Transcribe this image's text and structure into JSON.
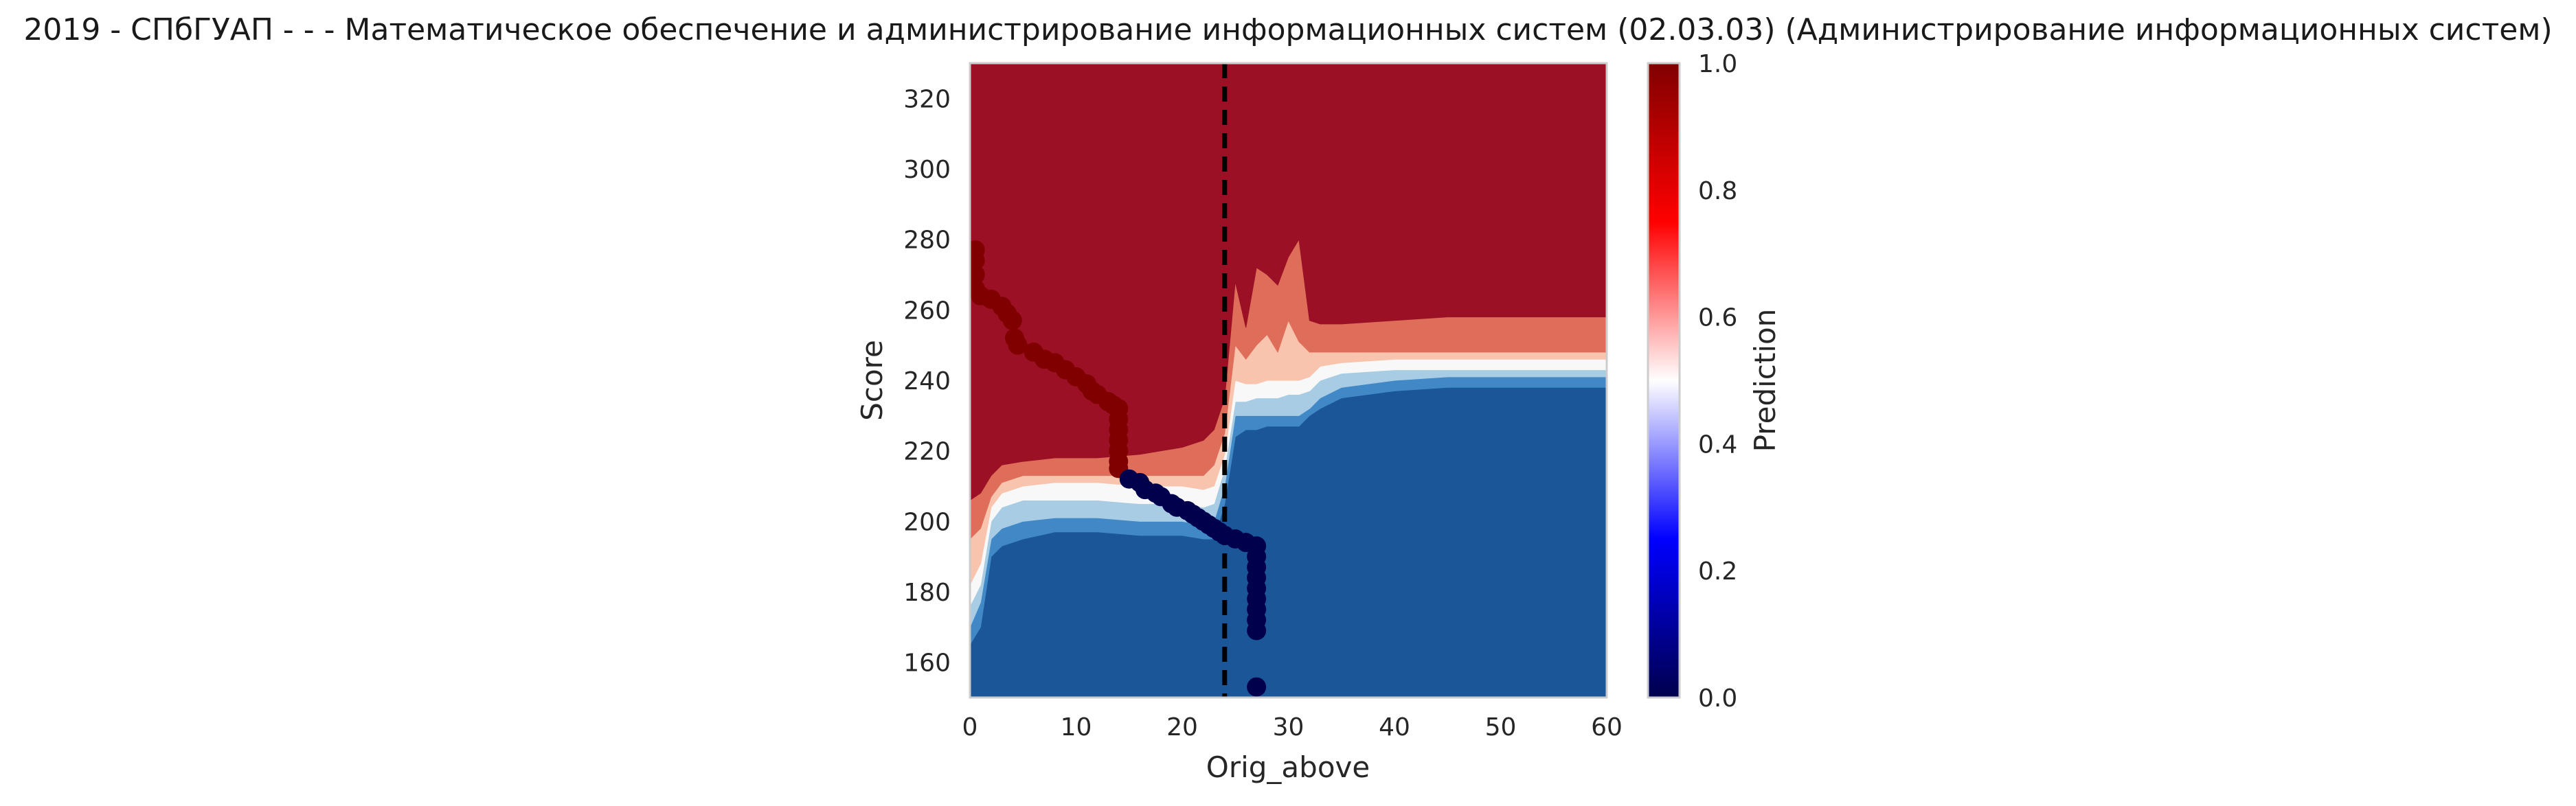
{
  "chart_data": {
    "type": "contour",
    "title": "2019 - СПбГУАП - - - Математическое обеспечение и администрирование информационных систем (02.03.03) (Администрирование информационных систем)",
    "xlabel": "Orig_above",
    "ylabel": "Score",
    "xlim": [
      0,
      60
    ],
    "ylim": [
      150,
      330
    ],
    "xticks": [
      0,
      10,
      20,
      30,
      40,
      50,
      60
    ],
    "yticks": [
      160,
      180,
      200,
      220,
      240,
      260,
      280,
      300,
      320
    ],
    "colorbar": {
      "label": "Prediction",
      "range": [
        0,
        1
      ],
      "ticks": [
        "0.0",
        "0.2",
        "0.4",
        "0.6",
        "0.8",
        "1.0"
      ],
      "cmap": [
        "#00004c",
        "#0000ff",
        "#ffffff",
        "#ff0000",
        "#800000"
      ]
    },
    "vertical_line": {
      "x": 24,
      "style": "dashed",
      "color": "#000000"
    },
    "contour_levels": [
      {
        "min": 0.0,
        "max": 0.2,
        "color": "#1b5699"
      },
      {
        "min": 0.2,
        "max": 0.3,
        "color": "#4189c6"
      },
      {
        "min": 0.3,
        "max": 0.4,
        "color": "#a7cce4"
      },
      {
        "min": 0.4,
        "max": 0.6,
        "color": "#f8f8f8"
      },
      {
        "min": 0.6,
        "max": 0.7,
        "color": "#f8c4ad"
      },
      {
        "min": 0.7,
        "max": 0.8,
        "color": "#de6e5a"
      },
      {
        "min": 0.8,
        "max": 1.0,
        "color": "#9b1024"
      }
    ],
    "boundaries": {
      "x": [
        0,
        1,
        2,
        3,
        5,
        8,
        12,
        16,
        20,
        22,
        23,
        24,
        25,
        26,
        27,
        28,
        29,
        30,
        31,
        32,
        33,
        35,
        40,
        45,
        50,
        55,
        60
      ],
      "b1": [
        165,
        170,
        190,
        193,
        195,
        197,
        197,
        196,
        196,
        195,
        195,
        205,
        224,
        226,
        226,
        227,
        227,
        227,
        227,
        230,
        232,
        235,
        237,
        238,
        238,
        238,
        238
      ],
      "b2": [
        170,
        177,
        195,
        198,
        200,
        201,
        201,
        200,
        200,
        199,
        200,
        210,
        230,
        230,
        230,
        230,
        230,
        230,
        230,
        232,
        235,
        238,
        240,
        241,
        241,
        241,
        241
      ],
      "b3": [
        176,
        182,
        200,
        204,
        206,
        206,
        206,
        205,
        205,
        204,
        205,
        215,
        234,
        234,
        235,
        235,
        235,
        236,
        236,
        237,
        240,
        242,
        243,
        243,
        243,
        243,
        243
      ],
      "b4": [
        182,
        188,
        204,
        208,
        210,
        211,
        211,
        210,
        210,
        209,
        210,
        219,
        240,
        239,
        239,
        240,
        240,
        240,
        240,
        241,
        244,
        245,
        246,
        246,
        246,
        246,
        246
      ],
      "b5": [
        195,
        198,
        207,
        211,
        213,
        213,
        213,
        213,
        213,
        213,
        216,
        225,
        250,
        246,
        250,
        253,
        248,
        257,
        251,
        248,
        248,
        248,
        248,
        248,
        248,
        248,
        248
      ],
      "b6": [
        206,
        208,
        213,
        216,
        217,
        218,
        218,
        219,
        221,
        223,
        226,
        235,
        268,
        255,
        272,
        270,
        267,
        275,
        280,
        257,
        256,
        256,
        257,
        258,
        258,
        258,
        258
      ]
    },
    "series": [
      {
        "name": "prediction=1",
        "color": "#800000",
        "points": [
          [
            0.5,
            277
          ],
          [
            0.5,
            274
          ],
          [
            0.5,
            270
          ],
          [
            0.5,
            266
          ],
          [
            1,
            264
          ],
          [
            2,
            263
          ],
          [
            3,
            261
          ],
          [
            3.5,
            259
          ],
          [
            4,
            257
          ],
          [
            4.2,
            252
          ],
          [
            4.5,
            250
          ],
          [
            6,
            248
          ],
          [
            7,
            246
          ],
          [
            8,
            245
          ],
          [
            9,
            243
          ],
          [
            10,
            241
          ],
          [
            11,
            239
          ],
          [
            11.5,
            237
          ],
          [
            12,
            236
          ],
          [
            13,
            234
          ],
          [
            13.5,
            233
          ],
          [
            14,
            232
          ],
          [
            14,
            229
          ],
          [
            14,
            226
          ],
          [
            14,
            223
          ],
          [
            14,
            220
          ],
          [
            14,
            217
          ],
          [
            14,
            215
          ]
        ]
      },
      {
        "name": "prediction=0",
        "color": "#00004c",
        "points": [
          [
            15,
            212
          ],
          [
            16,
            211
          ],
          [
            16.5,
            209
          ],
          [
            17.5,
            208
          ],
          [
            18,
            207
          ],
          [
            19,
            205
          ],
          [
            19.5,
            204
          ],
          [
            20.5,
            203
          ],
          [
            21,
            202
          ],
          [
            21.5,
            201
          ],
          [
            22,
            200
          ],
          [
            22.5,
            199
          ],
          [
            23,
            198
          ],
          [
            23.5,
            197
          ],
          [
            24,
            196
          ],
          [
            25,
            195
          ],
          [
            26,
            194
          ],
          [
            27,
            193
          ],
          [
            27,
            190
          ],
          [
            27,
            187
          ],
          [
            27,
            184
          ],
          [
            27,
            181
          ],
          [
            27,
            178
          ],
          [
            27,
            175
          ],
          [
            27,
            172
          ],
          [
            27,
            169
          ],
          [
            27,
            153
          ]
        ]
      }
    ]
  }
}
